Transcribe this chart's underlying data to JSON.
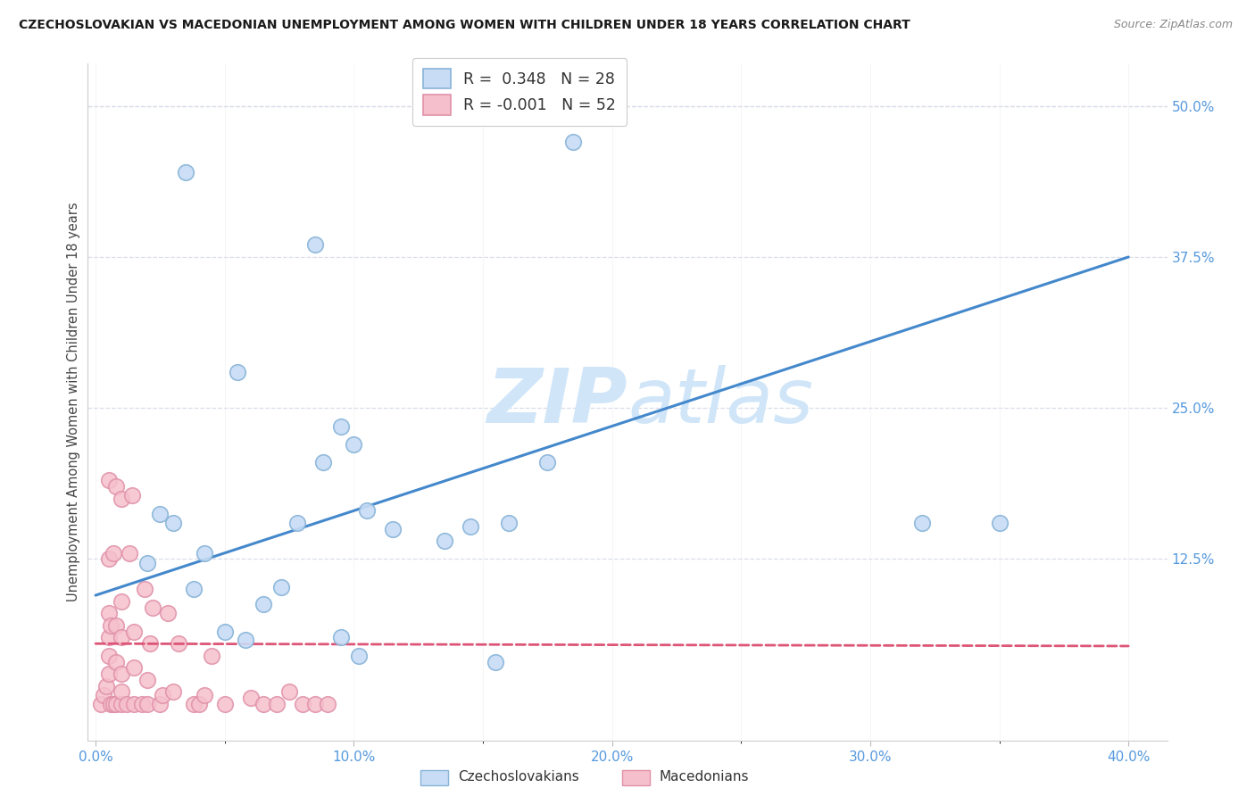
{
  "title": "CZECHOSLOVAKIAN VS MACEDONIAN UNEMPLOYMENT AMONG WOMEN WITH CHILDREN UNDER 18 YEARS CORRELATION CHART",
  "source": "Source: ZipAtlas.com",
  "ylabel": "Unemployment Among Women with Children Under 18 years",
  "xlim": [
    -0.003,
    0.415
  ],
  "ylim": [
    -0.025,
    0.535
  ],
  "xtick_labels": [
    "0.0%",
    "",
    "10.0%",
    "",
    "20.0%",
    "",
    "30.0%",
    "",
    "40.0%"
  ],
  "xtick_vals": [
    0.0,
    0.05,
    0.1,
    0.15,
    0.2,
    0.25,
    0.3,
    0.35,
    0.4
  ],
  "xtick_display": [
    0.0,
    0.1,
    0.2,
    0.3,
    0.4
  ],
  "xtick_display_labels": [
    "0.0%",
    "10.0%",
    "20.0%",
    "30.0%",
    "40.0%"
  ],
  "ytick_right_labels": [
    "12.5%",
    "25.0%",
    "37.5%",
    "50.0%"
  ],
  "ytick_right_vals": [
    0.125,
    0.25,
    0.375,
    0.5
  ],
  "blue_R": "0.348",
  "blue_N": "28",
  "pink_R": "-0.001",
  "pink_N": "52",
  "blue_scatter_face": "#c8dcf5",
  "blue_scatter_edge": "#88b4d8",
  "pink_scatter_face": "#f5c0cc",
  "pink_scatter_edge": "#e090a8",
  "trend_blue": "#4488cc",
  "trend_pink": "#dd5577",
  "watermark_color": "#d0e6f8",
  "grid_color": "#d8dde8",
  "bg_color": "#ffffff",
  "axis_label_color": "#5599dd",
  "legend_label_blue": "Czechoslovakians",
  "legend_label_pink": "Macedonians",
  "blue_x": [
    0.035,
    0.055,
    0.085,
    0.095,
    0.1,
    0.105,
    0.115,
    0.135,
    0.145,
    0.02,
    0.025,
    0.03,
    0.038,
    0.042,
    0.05,
    0.058,
    0.065,
    0.072,
    0.078,
    0.088,
    0.095,
    0.102,
    0.155,
    0.16,
    0.32,
    0.35,
    0.175,
    0.185
  ],
  "blue_y": [
    0.445,
    0.28,
    0.385,
    0.235,
    0.22,
    0.165,
    0.15,
    0.14,
    0.152,
    0.122,
    0.162,
    0.155,
    0.1,
    0.13,
    0.065,
    0.058,
    0.088,
    0.102,
    0.155,
    0.205,
    0.06,
    0.045,
    0.04,
    0.155,
    0.155,
    0.155,
    0.205,
    0.47
  ],
  "pink_x": [
    0.002,
    0.003,
    0.004,
    0.005,
    0.005,
    0.005,
    0.005,
    0.005,
    0.005,
    0.006,
    0.006,
    0.007,
    0.007,
    0.008,
    0.008,
    0.008,
    0.008,
    0.01,
    0.01,
    0.01,
    0.01,
    0.01,
    0.01,
    0.012,
    0.013,
    0.014,
    0.015,
    0.015,
    0.015,
    0.018,
    0.019,
    0.02,
    0.02,
    0.021,
    0.022,
    0.025,
    0.026,
    0.028,
    0.03,
    0.032,
    0.038,
    0.04,
    0.042,
    0.045,
    0.05,
    0.06,
    0.065,
    0.07,
    0.075,
    0.08,
    0.085,
    0.09
  ],
  "pink_y": [
    0.005,
    0.012,
    0.02,
    0.03,
    0.045,
    0.06,
    0.08,
    0.125,
    0.19,
    0.005,
    0.07,
    0.005,
    0.13,
    0.005,
    0.04,
    0.07,
    0.185,
    0.005,
    0.015,
    0.03,
    0.06,
    0.09,
    0.175,
    0.005,
    0.13,
    0.178,
    0.005,
    0.035,
    0.065,
    0.005,
    0.1,
    0.005,
    0.025,
    0.055,
    0.085,
    0.005,
    0.012,
    0.08,
    0.015,
    0.055,
    0.005,
    0.005,
    0.012,
    0.045,
    0.005,
    0.01,
    0.005,
    0.005,
    0.015,
    0.005,
    0.005,
    0.005
  ],
  "trend_blue_x0": 0.0,
  "trend_blue_y0": 0.095,
  "trend_blue_x1": 0.4,
  "trend_blue_y1": 0.375,
  "trend_pink_x0": 0.0,
  "trend_pink_y0": 0.055,
  "trend_pink_x1": 0.4,
  "trend_pink_y1": 0.053
}
